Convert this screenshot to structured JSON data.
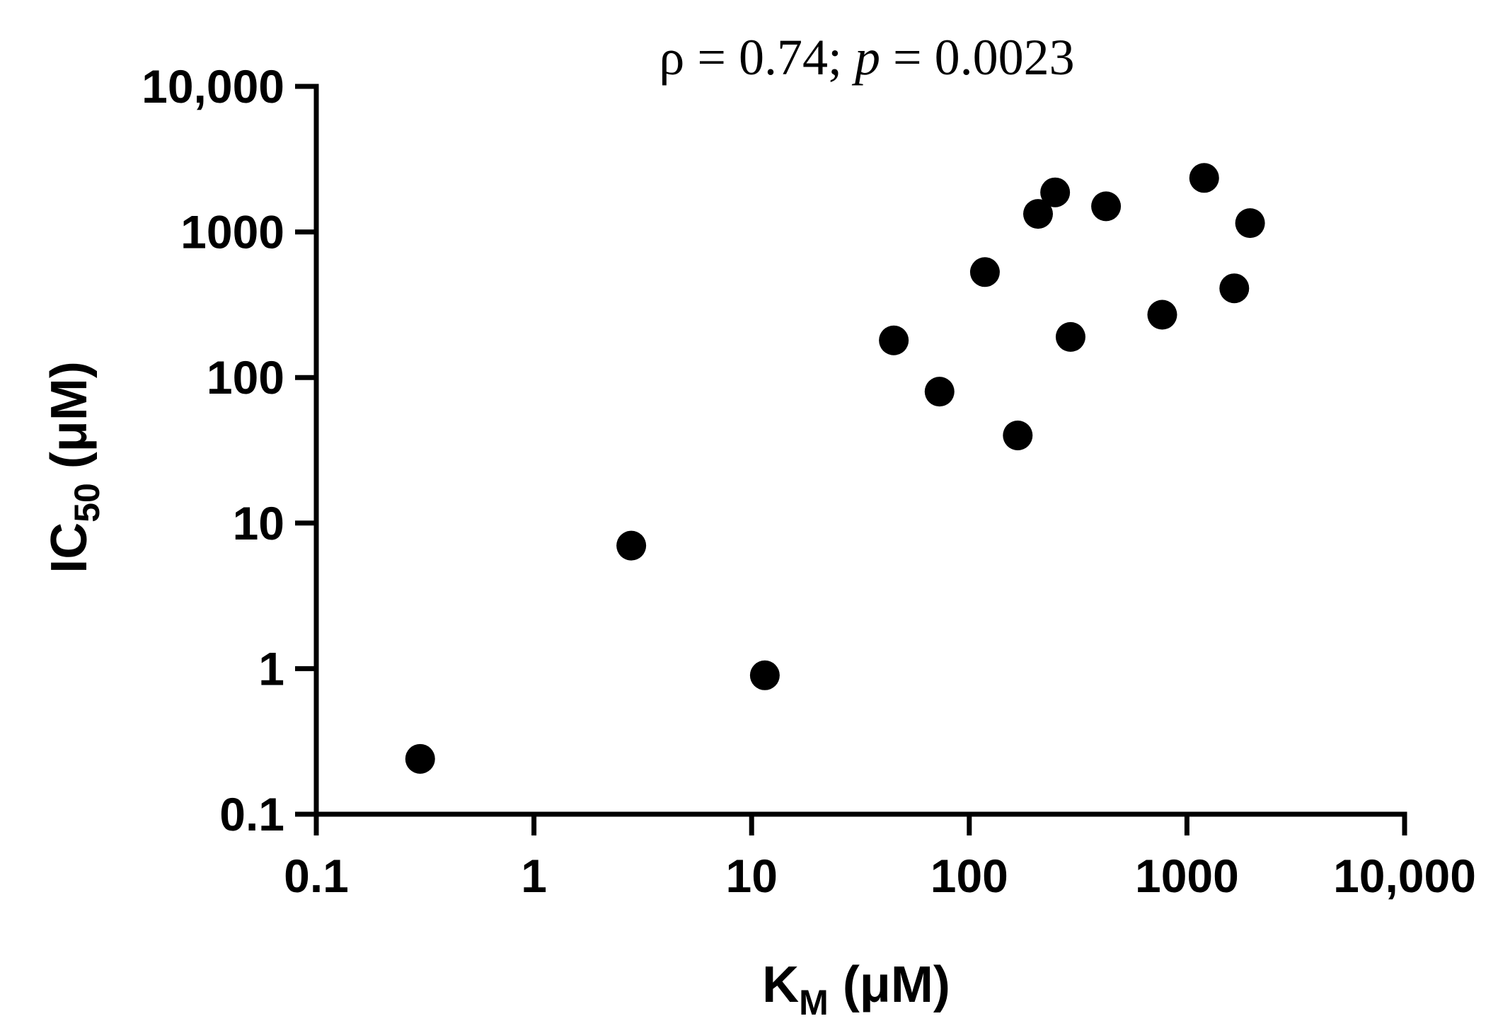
{
  "chart_data": {
    "type": "scatter",
    "annotation": {
      "rho_symbol": "ρ",
      "rho_value": " = 0.74; ",
      "p_symbol": "p",
      "p_value": " = 0.0023"
    },
    "xlabel": {
      "main": "K",
      "sub": "M",
      "unit": " (μM)"
    },
    "ylabel": {
      "main": "IC",
      "sub": "50",
      "unit": " (μM)"
    },
    "x_scale": "log",
    "y_scale": "log",
    "xlim": [
      0.1,
      10000
    ],
    "ylim": [
      0.1,
      10000
    ],
    "x_ticks": [
      {
        "value": 0.1,
        "label": "0.1"
      },
      {
        "value": 1,
        "label": "1"
      },
      {
        "value": 10,
        "label": "10"
      },
      {
        "value": 100,
        "label": "100"
      },
      {
        "value": 1000,
        "label": "1000"
      },
      {
        "value": 10000,
        "label": "10,000"
      }
    ],
    "y_ticks": [
      {
        "value": 0.1,
        "label": "0.1"
      },
      {
        "value": 1,
        "label": "1"
      },
      {
        "value": 10,
        "label": "10"
      },
      {
        "value": 100,
        "label": "100"
      },
      {
        "value": 1000,
        "label": "1000"
      },
      {
        "value": 10000,
        "label": "10,000"
      }
    ],
    "grid": false,
    "marker_color": "#000000",
    "points": [
      {
        "x": 0.3,
        "y": 0.24
      },
      {
        "x": 2.8,
        "y": 7
      },
      {
        "x": 11.5,
        "y": 0.9
      },
      {
        "x": 45,
        "y": 180
      },
      {
        "x": 73,
        "y": 80
      },
      {
        "x": 118,
        "y": 530
      },
      {
        "x": 167,
        "y": 40
      },
      {
        "x": 207,
        "y": 1330
      },
      {
        "x": 248,
        "y": 1870
      },
      {
        "x": 292,
        "y": 190
      },
      {
        "x": 425,
        "y": 1500
      },
      {
        "x": 770,
        "y": 270
      },
      {
        "x": 1200,
        "y": 2350
      },
      {
        "x": 1650,
        "y": 410
      },
      {
        "x": 1950,
        "y": 1150
      }
    ]
  }
}
